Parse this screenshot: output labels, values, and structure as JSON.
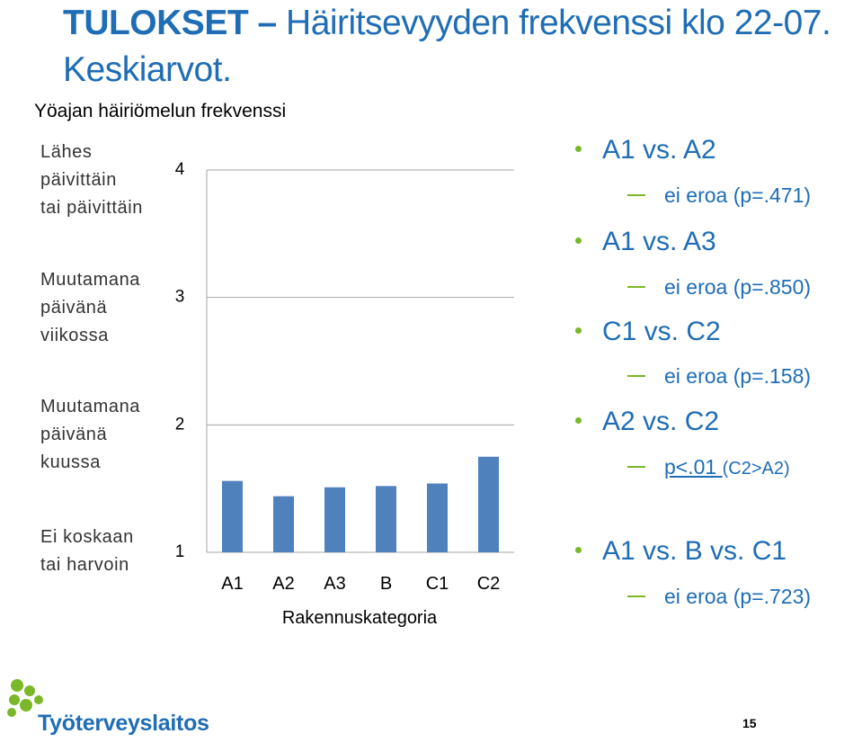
{
  "slide": {
    "title_bold": "TULOKSET –",
    "title_rest": " Häiritsevyyden frekvenssi klo 22-07. Keskiarvot.",
    "page_number": "15"
  },
  "chart_data": {
    "type": "bar",
    "title": "Yöajan häiriömelun frekvenssi",
    "xlabel": "Rakennuskategoria",
    "ylabel": "",
    "categories": [
      "A1",
      "A2",
      "A3",
      "B",
      "C1",
      "C2"
    ],
    "values": [
      1.56,
      1.44,
      1.51,
      1.52,
      1.54,
      1.75
    ],
    "ylim": [
      1,
      4
    ],
    "yticks": [
      1,
      2,
      3,
      4
    ],
    "y_category_labels": [
      {
        "value": 4,
        "lines": [
          "Lähes",
          "päivittäin",
          "tai päivittäin"
        ]
      },
      {
        "value": 3,
        "lines": [
          "Muutamana",
          "päivänä",
          "viikossa"
        ]
      },
      {
        "value": 2,
        "lines": [
          "Muutamana",
          "päivänä",
          "kuussa"
        ]
      },
      {
        "value": 1,
        "lines": [
          "Ei koskaan",
          "tai harvoin"
        ]
      }
    ],
    "bar_color": "#4f81bd",
    "grid": true
  },
  "comparisons": [
    {
      "heading": "A1 vs. A2",
      "result": "ei eroa (p=.471)"
    },
    {
      "heading": "A1 vs. A3",
      "result": "ei eroa (p=.850)"
    },
    {
      "heading": "C1 vs. C2",
      "result": "ei eroa (p=.158)"
    },
    {
      "heading": "A2 vs. C2",
      "result_underlined": "p<.01 ",
      "result_suffix": "(C2>A2)"
    },
    {
      "heading": "A1 vs. B vs. C1",
      "result": "ei eroa (p=.723)"
    }
  ],
  "logo": {
    "text": "Työterveyslaitos",
    "icon": "ttl-leaf-logo-icon"
  },
  "colors": {
    "title": "#1f6db5",
    "bullet": "#7ab829",
    "bar": "#4f81bd",
    "logo_green": "#7ab829"
  }
}
